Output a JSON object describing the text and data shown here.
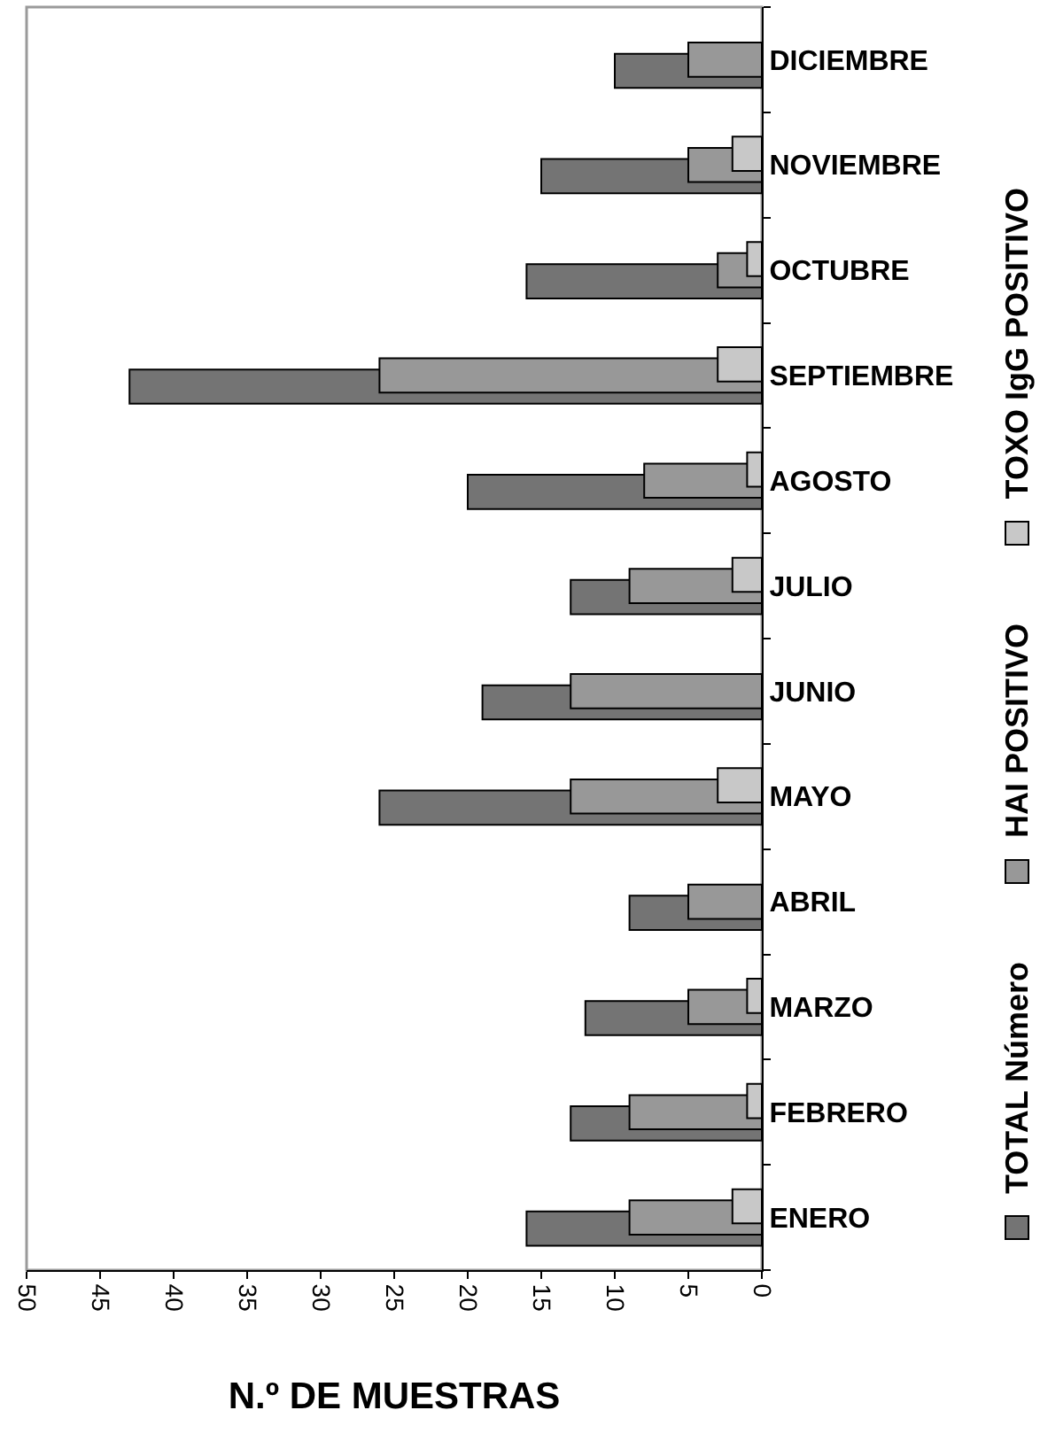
{
  "chart_data": {
    "type": "bar",
    "orientation": "horizontal",
    "categories": [
      "DICIEMBRE",
      "NOVIEMBRE",
      "OCTUBRE",
      "SEPTIEMBRE",
      "AGOSTO",
      "JULIO",
      "JUNIO",
      "MAYO",
      "ABRIL",
      "MARZO",
      "FEBRERO",
      "ENERO"
    ],
    "series": [
      {
        "name": "TOTAL Número",
        "color": "#747474",
        "values": [
          10,
          15,
          16,
          43,
          20,
          13,
          19,
          26,
          9,
          12,
          13,
          16
        ]
      },
      {
        "name": "HAI POSITIVO",
        "color": "#989898",
        "values": [
          5,
          5,
          3,
          26,
          8,
          9,
          13,
          13,
          5,
          5,
          9,
          9
        ]
      },
      {
        "name": "TOXO IgG POSITIVO",
        "color": "#c8c8c8",
        "values": [
          null,
          2,
          1,
          3,
          1,
          2,
          null,
          3,
          null,
          1,
          1,
          2
        ]
      }
    ],
    "xlabel": "N.º DE MUESTRAS",
    "xlim": [
      50,
      0
    ],
    "xticks": [
      50,
      45,
      40,
      35,
      30,
      25,
      20,
      15,
      10,
      5,
      0
    ],
    "legend": "right"
  }
}
